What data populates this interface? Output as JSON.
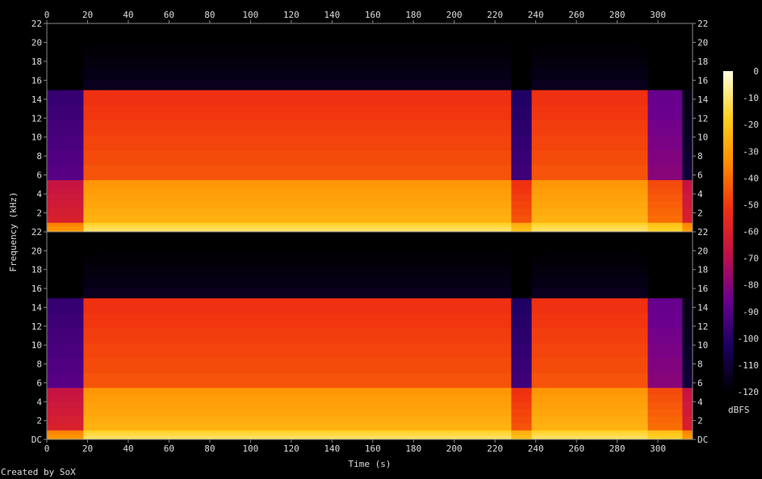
{
  "chart_data": {
    "type": "heatmap",
    "xlabel": "Time (s)",
    "ylabel": "Frequency (kHz)",
    "xlim": [
      0,
      317
    ],
    "ylim": [
      0,
      22
    ],
    "x_ticks": [
      0,
      20,
      40,
      60,
      80,
      100,
      120,
      140,
      160,
      180,
      200,
      220,
      240,
      260,
      280,
      300
    ],
    "y_ticks": [
      "DC",
      "2",
      "4",
      "6",
      "8",
      "10",
      "12",
      "14",
      "16",
      "18",
      "20",
      "22"
    ],
    "channels": 2,
    "colorbar": {
      "label": "dBFS",
      "ticks": [
        0,
        -10,
        -20,
        -30,
        -40,
        -50,
        -60,
        -70,
        -80,
        -90,
        -100,
        -110,
        -120
      ],
      "range": [
        -120,
        0
      ]
    },
    "colors": [
      "#000000",
      "#1a0060",
      "#6a0090",
      "#c0104a",
      "#f03010",
      "#ff8c00",
      "#ffd020",
      "#ffffe0"
    ],
    "time_segments": [
      [
        0,
        18
      ],
      [
        18,
        228
      ],
      [
        228,
        238
      ],
      [
        238,
        295
      ],
      [
        295,
        312
      ],
      [
        312,
        317
      ]
    ],
    "freq_bands_khz": [
      [
        0,
        1
      ],
      [
        1,
        5.5
      ],
      [
        5.5,
        15
      ],
      [
        15,
        22
      ]
    ],
    "levels_dbfs": [
      [
        -30,
        -60,
        -90,
        -120
      ],
      [
        -10,
        -25,
        -45,
        -115
      ],
      [
        -20,
        -45,
        -95,
        -120
      ],
      [
        -10,
        -25,
        -45,
        -115
      ],
      [
        -15,
        -40,
        -80,
        -120
      ],
      [
        -30,
        -60,
        -110,
        -120
      ]
    ]
  },
  "footer": "Created by SoX"
}
